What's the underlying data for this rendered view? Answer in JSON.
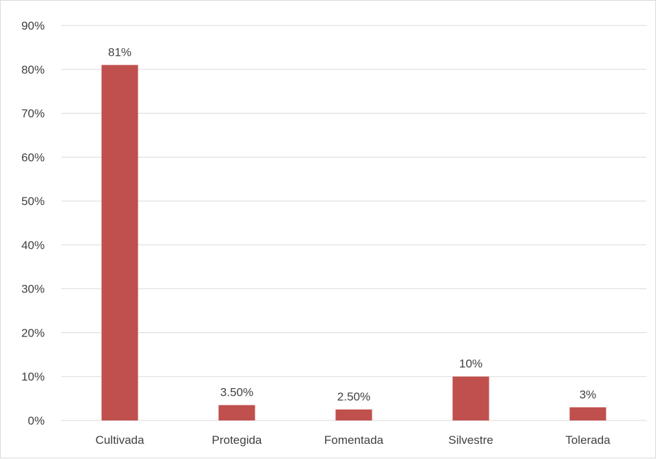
{
  "chart_data": {
    "type": "bar",
    "categories": [
      "Cultivada",
      "Protegida",
      "Fomentada",
      "Silvestre",
      "Tolerada"
    ],
    "values": [
      81,
      3.5,
      2.5,
      10,
      3
    ],
    "data_labels": [
      "81%",
      "3.50%",
      "2.50%",
      "10%",
      "3%"
    ],
    "yticks": [
      0,
      10,
      20,
      30,
      40,
      50,
      60,
      70,
      80,
      90
    ],
    "ytick_labels": [
      "0%",
      "10%",
      "20%",
      "30%",
      "40%",
      "50%",
      "60%",
      "70%",
      "80%",
      "90%"
    ],
    "ylim": [
      0,
      90
    ],
    "grid": true,
    "legend": "none",
    "bar_color": "#c0504d",
    "grid_color": "#d9d9d9"
  }
}
